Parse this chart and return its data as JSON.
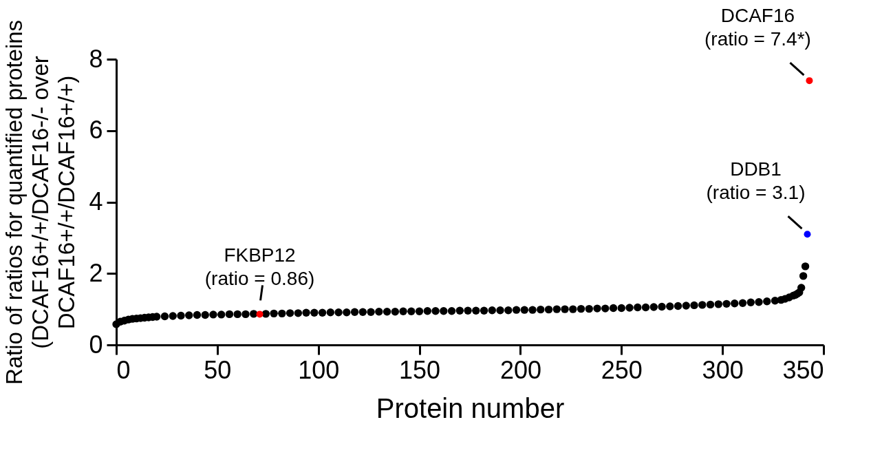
{
  "chart_data": {
    "type": "scatter",
    "xlabel": "Protein number",
    "ylabel": "Ratio of ratios for quantified proteins\n(DCAF16+/+/DCAF16-/- over\nDCAF16+/+/DCAF16+/+)",
    "xlim": [
      0,
      350
    ],
    "ylim": [
      0,
      8
    ],
    "xticks": [
      0,
      50,
      100,
      150,
      200,
      250,
      300,
      350
    ],
    "yticks": [
      0,
      2,
      4,
      6,
      8
    ],
    "grid": false,
    "marker": "circle",
    "series": [
      {
        "color": "#000000",
        "x": [
          0,
          2,
          4,
          6,
          8,
          10,
          12,
          14,
          16,
          18,
          20,
          24,
          28,
          32,
          36,
          40,
          44,
          48,
          52,
          56,
          60,
          64,
          68,
          74,
          78,
          82,
          86,
          90,
          94,
          98,
          102,
          106,
          110,
          114,
          118,
          122,
          126,
          130,
          134,
          138,
          142,
          146,
          150,
          154,
          158,
          162,
          166,
          170,
          174,
          178,
          182,
          186,
          190,
          194,
          198,
          202,
          206,
          210,
          214,
          218,
          222,
          226,
          230,
          234,
          238,
          242,
          246,
          250,
          254,
          258,
          262,
          266,
          270,
          274,
          278,
          282,
          286,
          290,
          294,
          298,
          302,
          306,
          310,
          314,
          318,
          322,
          326,
          329,
          331,
          333,
          335,
          336,
          337,
          338,
          339,
          340,
          341
        ],
        "values": [
          0.58,
          0.65,
          0.68,
          0.71,
          0.73,
          0.74,
          0.75,
          0.76,
          0.77,
          0.78,
          0.79,
          0.8,
          0.81,
          0.82,
          0.83,
          0.84,
          0.84,
          0.85,
          0.85,
          0.86,
          0.86,
          0.86,
          0.87,
          0.87,
          0.88,
          0.88,
          0.89,
          0.89,
          0.9,
          0.9,
          0.9,
          0.91,
          0.91,
          0.91,
          0.92,
          0.92,
          0.92,
          0.93,
          0.93,
          0.93,
          0.94,
          0.94,
          0.94,
          0.95,
          0.95,
          0.95,
          0.95,
          0.96,
          0.96,
          0.96,
          0.96,
          0.97,
          0.97,
          0.97,
          0.98,
          0.98,
          0.98,
          0.99,
          0.99,
          1.0,
          1.0,
          1.0,
          1.01,
          1.01,
          1.02,
          1.02,
          1.03,
          1.03,
          1.04,
          1.05,
          1.05,
          1.06,
          1.07,
          1.08,
          1.09,
          1.1,
          1.11,
          1.12,
          1.13,
          1.14,
          1.15,
          1.16,
          1.17,
          1.19,
          1.2,
          1.22,
          1.24,
          1.26,
          1.29,
          1.33,
          1.38,
          1.4,
          1.43,
          1.47,
          1.6,
          1.93,
          2.2
        ]
      },
      {
        "color": "#ff0000",
        "x": [
          71,
          343
        ],
        "values": [
          0.86,
          7.4
        ]
      },
      {
        "color": "#0000ff",
        "x": [
          342
        ],
        "values": [
          3.1
        ]
      }
    ],
    "annotations": [
      {
        "text": "FKBP12\n(ratio = 0.86)",
        "x": 71,
        "y": 0.86
      },
      {
        "text": "DDB1\n(ratio = 3.1)",
        "x": 342,
        "y": 3.1
      },
      {
        "text": "DCAF16\n(ratio = 7.4*)",
        "x": 343,
        "y": 7.4
      }
    ]
  }
}
